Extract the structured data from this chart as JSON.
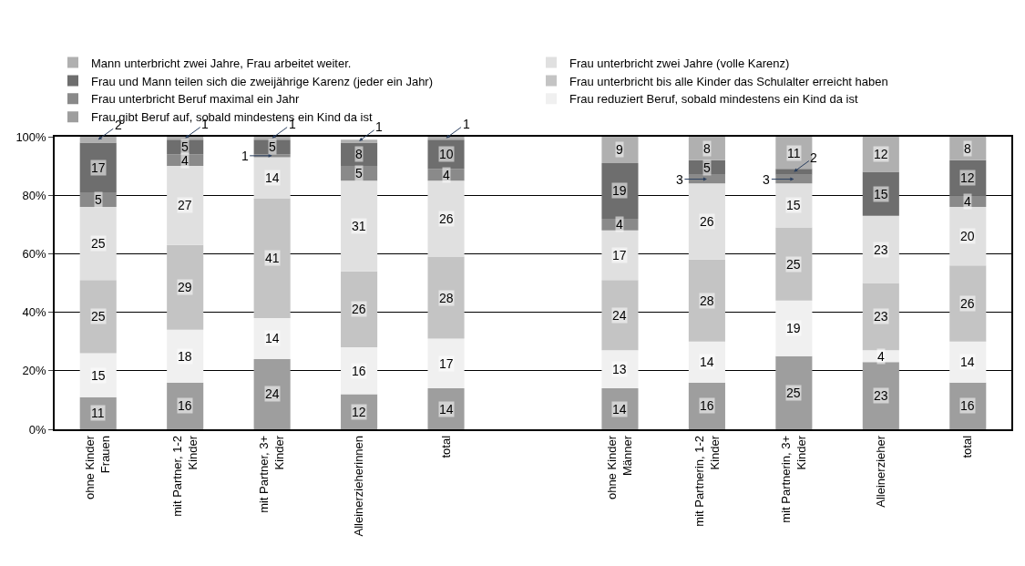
{
  "chart_data": {
    "type": "bar",
    "stacked": true,
    "categories": [
      "ohne Kinder\nFrauen",
      "mit Partner, 1-2\nKinder",
      "mit Partner, 3+\nKinder",
      "Alleinerzieherinnen",
      "total",
      null,
      "ohne Kinder\nMänner",
      "mit Partnerin, 1-2\nKinder",
      "mit Partnerin, 3+\nKinder",
      "Alleinerzieher",
      "total"
    ],
    "series": [
      {
        "name": "Frau gibt Beruf auf, sobald mindestens ein Kind da ist",
        "color": "#9e9e9e",
        "values": [
          11,
          16,
          24,
          12,
          14,
          null,
          14,
          16,
          25,
          23,
          16
        ]
      },
      {
        "name": "Frau reduziert Beruf, sobald mindestens ein Kind da ist",
        "color": "#f0f0f0",
        "values": [
          15,
          18,
          14,
          16,
          17,
          null,
          13,
          14,
          19,
          4,
          14
        ]
      },
      {
        "name": "Frau unterbricht bis alle Kinder das Schulalter erreicht haben",
        "color": "#c4c4c4",
        "values": [
          25,
          29,
          41,
          26,
          28,
          null,
          24,
          28,
          25,
          23,
          26
        ]
      },
      {
        "name": "Frau unterbricht zwei Jahre (volle Karenz)",
        "color": "#e0e0e0",
        "values": [
          25,
          27,
          14,
          31,
          26,
          null,
          17,
          26,
          15,
          23,
          20
        ]
      },
      {
        "name": "Frau unterbricht Beruf maximal ein Jahr",
        "color": "#8a8a8a",
        "values": [
          5,
          4,
          1,
          5,
          4,
          null,
          4,
          3,
          3,
          null,
          4
        ]
      },
      {
        "name": "Frau und Mann teilen sich die zweijährige Karenz (jeder ein Jahr)",
        "color": "#6e6e6e",
        "values": [
          17,
          5,
          5,
          8,
          10,
          null,
          19,
          5,
          2,
          15,
          12
        ]
      },
      {
        "name": "Mann unterbricht zwei Jahre, Frau arbeitet weiter.",
        "color": "#b0b0b0",
        "values": [
          2,
          1,
          1,
          1,
          1,
          null,
          9,
          8,
          11,
          12,
          8
        ]
      }
    ],
    "ylim": [
      0,
      100
    ],
    "yticks": [
      {
        "value": 0,
        "label": "0%"
      },
      {
        "value": 20,
        "label": "20%"
      },
      {
        "value": 40,
        "label": "40%"
      },
      {
        "value": 60,
        "label": "60%"
      },
      {
        "value": 80,
        "label": "80%"
      },
      {
        "value": 100,
        "label": "100%"
      }
    ],
    "grid": "y",
    "legend": "top",
    "data_labels": true
  }
}
